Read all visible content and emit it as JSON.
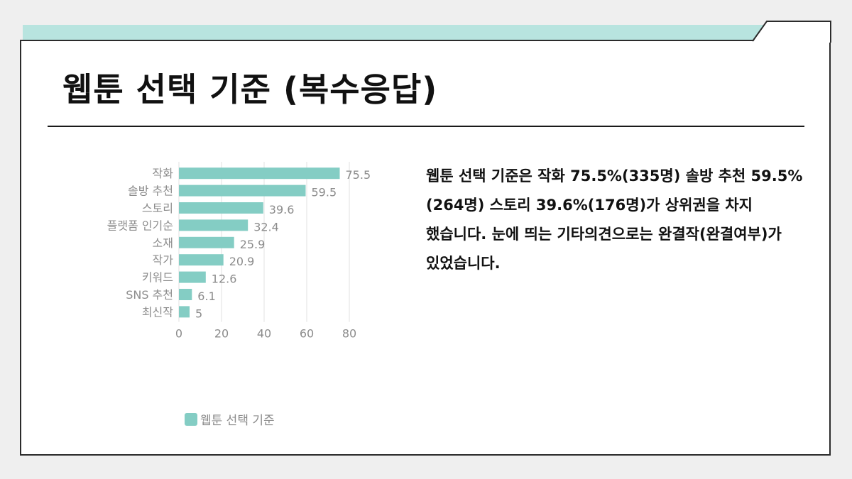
{
  "title": "웹툰 선택 기준 (복수응답)",
  "description": "웹툰 선택 기준은 작화 75.5%(335명) 솔방 추천 59.5%(264명) 스토리 39.6%(176명)가 상위권을 차지 했습니다. 눈에 띄는 기타의견으로는 완결작(완결여부)가 있었습니다.",
  "colors": {
    "bar": "#84cdc4",
    "accent_strip": "#b8e4df",
    "label": "#8c8c8c"
  },
  "chart_data": {
    "type": "bar",
    "orientation": "horizontal",
    "categories": [
      "작화",
      "솔방 추천",
      "스토리",
      "플랫폼 인기순",
      "소재",
      "작가",
      "키워드",
      "SNS 추천",
      "최신작"
    ],
    "series": [
      {
        "name": "웹툰 선택 기준",
        "values": [
          75.5,
          59.5,
          39.6,
          32.4,
          25.9,
          20.9,
          12.6,
          6.1,
          5
        ]
      }
    ],
    "value_labels": [
      "75.5",
      "59.5",
      "39.6",
      "32.4",
      "25.9",
      "20.9",
      "12.6",
      "6.1",
      "5"
    ],
    "xlim": [
      0,
      80
    ],
    "xticks": [
      "0",
      "20",
      "40",
      "60",
      "80"
    ],
    "grid": true,
    "legend": "bottom",
    "legend_label": "웹툰 선택 기준"
  }
}
